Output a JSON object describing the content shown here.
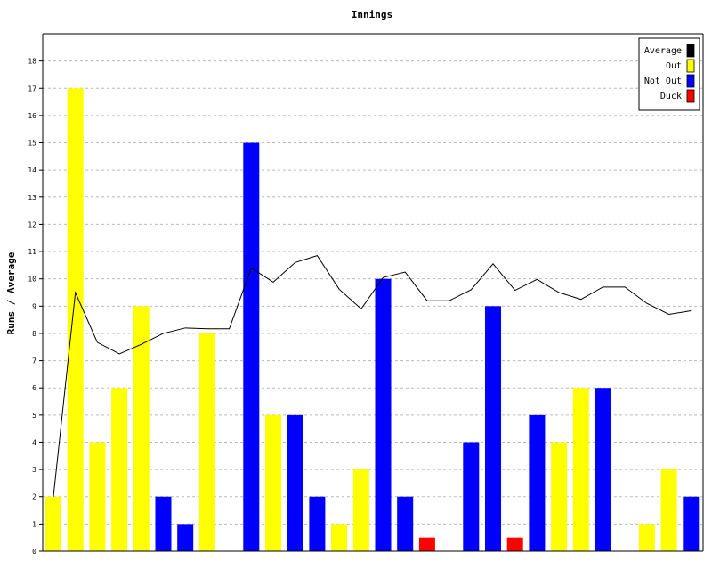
{
  "chart_data": {
    "type": "bar",
    "title": "Innings",
    "xlabel": "",
    "ylabel": "Runs / Average",
    "ylim": [
      0,
      19
    ],
    "yticks": [
      0,
      1,
      2,
      3,
      4,
      5,
      6,
      7,
      8,
      9,
      10,
      11,
      12,
      13,
      14,
      15,
      16,
      17,
      18
    ],
    "grid": true,
    "legend_position": "top-right",
    "legend": [
      {
        "label": "Average",
        "color": "#000000"
      },
      {
        "label": "Out",
        "color": "#ffff00"
      },
      {
        "label": "Not Out",
        "color": "#0000ff"
      },
      {
        "label": "Duck",
        "color": "#ff0000"
      }
    ],
    "innings": [
      {
        "runs": 2,
        "status": "out"
      },
      {
        "runs": 17,
        "status": "out"
      },
      {
        "runs": 4,
        "status": "out"
      },
      {
        "runs": 6,
        "status": "out"
      },
      {
        "runs": 9,
        "status": "out"
      },
      {
        "runs": 2,
        "status": "not_out"
      },
      {
        "runs": 1,
        "status": "not_out"
      },
      {
        "runs": 8,
        "status": "out"
      },
      {
        "runs": 0,
        "status": "none"
      },
      {
        "runs": 15,
        "status": "not_out"
      },
      {
        "runs": 5,
        "status": "out"
      },
      {
        "runs": 5,
        "status": "not_out"
      },
      {
        "runs": 2,
        "status": "not_out"
      },
      {
        "runs": 1,
        "status": "out"
      },
      {
        "runs": 3,
        "status": "out"
      },
      {
        "runs": 10,
        "status": "not_out"
      },
      {
        "runs": 2,
        "status": "not_out"
      },
      {
        "runs": 0.5,
        "status": "duck"
      },
      {
        "runs": 0,
        "status": "none"
      },
      {
        "runs": 4,
        "status": "not_out"
      },
      {
        "runs": 9,
        "status": "not_out"
      },
      {
        "runs": 0.5,
        "status": "duck"
      },
      {
        "runs": 5,
        "status": "not_out"
      },
      {
        "runs": 4,
        "status": "out"
      },
      {
        "runs": 6,
        "status": "out"
      },
      {
        "runs": 6,
        "status": "not_out"
      },
      {
        "runs": 0,
        "status": "none"
      },
      {
        "runs": 1,
        "status": "out"
      },
      {
        "runs": 3,
        "status": "out"
      },
      {
        "runs": 2,
        "status": "not_out"
      }
    ],
    "average": [
      2,
      9.5,
      7.67,
      7.25,
      7.6,
      8.0,
      8.2,
      8.17,
      8.17,
      10.4,
      9.88,
      10.6,
      10.85,
      9.62,
      8.9,
      10.05,
      10.25,
      9.2,
      9.2,
      9.6,
      10.55,
      9.58,
      9.98,
      9.5,
      9.25,
      9.7,
      9.7,
      9.1,
      8.7,
      8.83
    ]
  }
}
